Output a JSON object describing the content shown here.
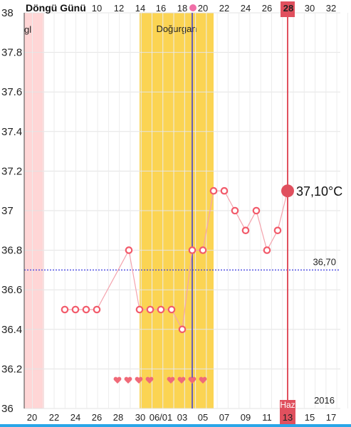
{
  "chart_data": {
    "type": "line",
    "cycle_day_label": "Döngü Günü",
    "cycle_day_ticks": [
      "10",
      "12",
      "14",
      "16",
      "18",
      "20",
      "22",
      "24",
      "26",
      "28",
      "30",
      "32"
    ],
    "highlight_cycle_day": "28",
    "x_date_labels": [
      "20",
      "22",
      "24",
      "26",
      "28",
      "30",
      "06/01",
      "03",
      "05",
      "07",
      "09",
      "11",
      "13",
      "15",
      "17"
    ],
    "highlight_date_label": "13",
    "highlight_month_label": "Haz",
    "year_label": "2016",
    "ylim": [
      36,
      38
    ],
    "y_ticks": [
      "38",
      "37.8",
      "37.6",
      "37.4",
      "37.2",
      "37",
      "36.8",
      "36.6",
      "36.4",
      "36.2",
      "36"
    ],
    "period_label": "gl",
    "fertile_label": "Doğurgan",
    "coverline_value": 36.7,
    "coverline_label": "36,70",
    "current_value_label": "37,10°C",
    "series": [
      {
        "x": [
          "23",
          "24",
          "25",
          "26",
          "29",
          "30",
          "31",
          "06/01",
          "02",
          "03",
          "04",
          "05",
          "06",
          "07",
          "08",
          "09",
          "10",
          "11",
          "12",
          "13"
        ],
        "values": [
          36.5,
          36.5,
          36.5,
          36.5,
          36.8,
          36.5,
          36.5,
          36.5,
          36.5,
          36.4,
          36.8,
          36.8,
          37.1,
          37.1,
          37.0,
          36.9,
          37.0,
          36.8,
          36.9,
          37.1
        ]
      }
    ],
    "heart_days": [
      "28",
      "29",
      "30",
      "31",
      "02",
      "03",
      "04",
      "05"
    ],
    "colors": {
      "point_line": "#f4a3ad",
      "point_ring": "#f25b6b",
      "period_band": "#ffd6d6",
      "fertile_band": "#fbd453",
      "highlight": "#e0505e",
      "today_line": "#3b3bd4",
      "coverline": "#3a3ae0",
      "heart": "#f06a78",
      "bottom_bar": "#2aa6e8"
    }
  }
}
